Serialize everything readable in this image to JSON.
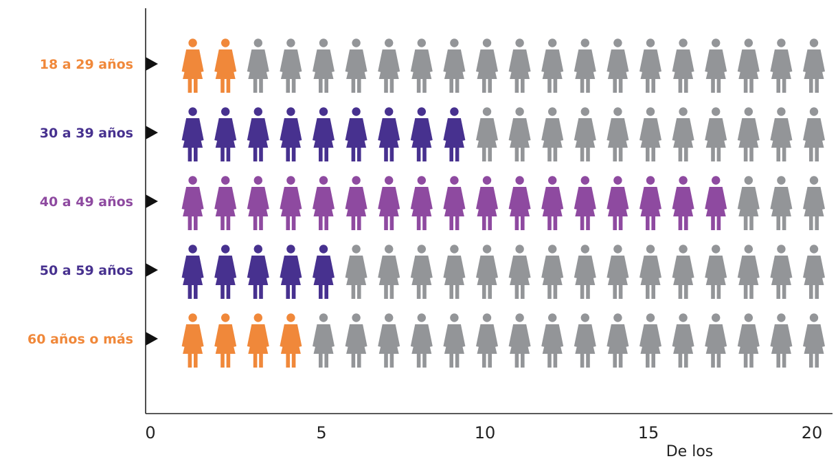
{
  "chart_data": {
    "type": "bar",
    "chart_style": "pictograph",
    "icon": "woman-figure-icon",
    "categories": [
      "18 a 29 años",
      "30 a 39 años",
      "40 a 49 años",
      "50 a 59 años",
      "60 años o más"
    ],
    "values": [
      2,
      9,
      17,
      5,
      4
    ],
    "total_per_row": 20,
    "category_colors": [
      "#F0883A",
      "#47318F",
      "#8E4AA0",
      "#47318F",
      "#F0883A"
    ],
    "remainder_color": "#939598",
    "x_ticks": [
      "0",
      "5",
      "10",
      "15",
      "20"
    ],
    "xlim": [
      0,
      20
    ],
    "xlabel": "De los",
    "ylabel": "",
    "title": "",
    "grid": false,
    "legend": "none"
  }
}
